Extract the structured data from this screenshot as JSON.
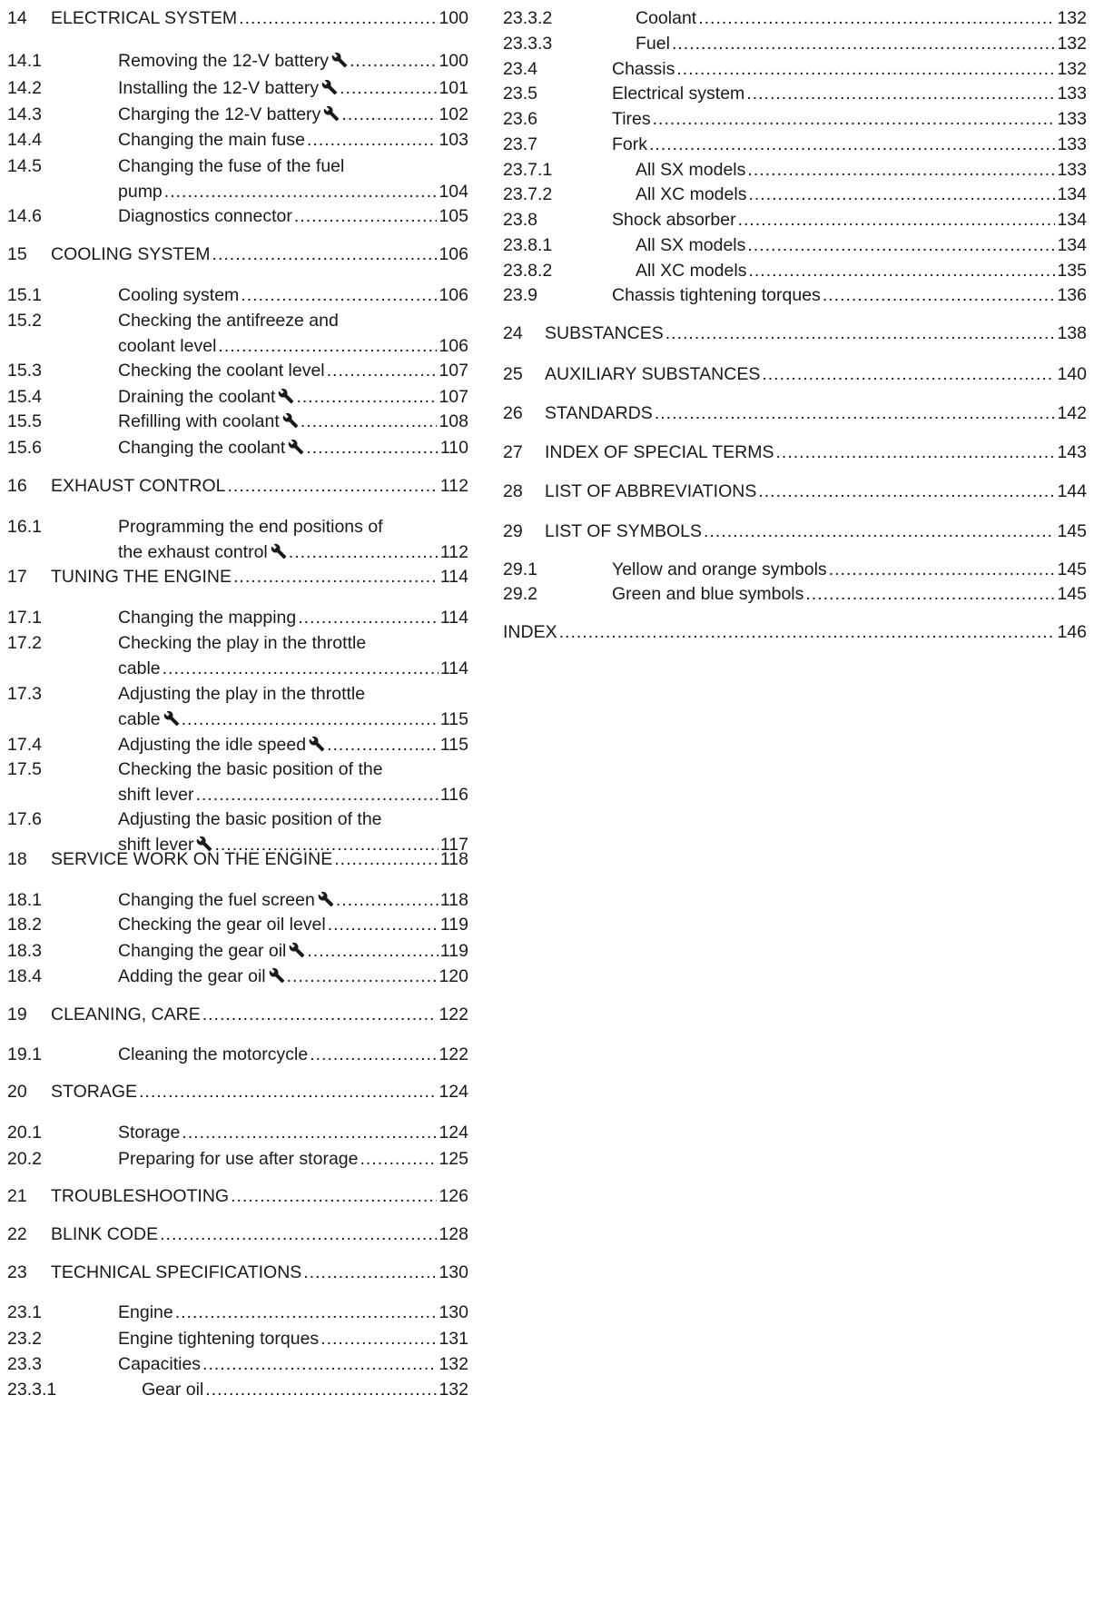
{
  "left_column": [
    {
      "num": "14",
      "title_lines": [
        "ELECTRICAL SYSTEM"
      ],
      "page": "100",
      "level": 1,
      "wrench": false
    },
    {
      "num": "14.1",
      "title_lines": [
        "Removing the 12-V battery"
      ],
      "page": "100",
      "level": 2,
      "wrench": true
    },
    {
      "num": "14.2",
      "title_lines": [
        "Installing the 12-V battery"
      ],
      "page": "101",
      "level": 2,
      "wrench": true
    },
    {
      "num": "14.3",
      "title_lines": [
        "Charging the 12-V battery"
      ],
      "page": "102",
      "level": 2,
      "wrench": true
    },
    {
      "num": "14.4",
      "title_lines": [
        "Changing the main fuse"
      ],
      "page": "103",
      "level": 2,
      "wrench": false
    },
    {
      "num": "14.5",
      "title_lines": [
        "Changing the fuse of the fuel",
        "pump"
      ],
      "page": "104",
      "level": 2,
      "wrench": false
    },
    {
      "num": "14.6",
      "title_lines": [
        "Diagnostics connector"
      ],
      "page": "105",
      "level": 2,
      "wrench": false
    },
    {
      "num": "15",
      "title_lines": [
        "COOLING SYSTEM"
      ],
      "page": "106",
      "level": 1,
      "wrench": false
    },
    {
      "num": "15.1",
      "title_lines": [
        "Cooling system"
      ],
      "page": "106",
      "level": 2,
      "wrench": false
    },
    {
      "num": "15.2",
      "title_lines": [
        "Checking the antifreeze and",
        "coolant level"
      ],
      "page": "106",
      "level": 2,
      "wrench": false
    },
    {
      "num": "15.3",
      "title_lines": [
        "Checking the coolant level"
      ],
      "page": "107",
      "level": 2,
      "wrench": false
    },
    {
      "num": "15.4",
      "title_lines": [
        "Draining the coolant"
      ],
      "page": "107",
      "level": 2,
      "wrench": true
    },
    {
      "num": "15.5",
      "title_lines": [
        "Refilling with coolant"
      ],
      "page": "108",
      "level": 2,
      "wrench": true
    },
    {
      "num": "15.6",
      "title_lines": [
        "Changing the coolant"
      ],
      "page": "110",
      "level": 2,
      "wrench": true
    },
    {
      "num": "16",
      "title_lines": [
        "EXHAUST CONTROL"
      ],
      "page": "112",
      "level": 1,
      "wrench": false
    },
    {
      "num": "16.1",
      "title_lines": [
        "Programming the end positions of",
        "the exhaust control"
      ],
      "page": "112",
      "level": 2,
      "wrench": true
    },
    {
      "num": "17",
      "title_lines": [
        "TUNING THE ENGINE"
      ],
      "page": "114",
      "level": 1,
      "wrench": false
    },
    {
      "num": "17.1",
      "title_lines": [
        "Changing the mapping"
      ],
      "page": "114",
      "level": 2,
      "wrench": false
    },
    {
      "num": "17.2",
      "title_lines": [
        "Checking the play in the throttle",
        "cable"
      ],
      "page": "114",
      "level": 2,
      "wrench": false
    },
    {
      "num": "17.3",
      "title_lines": [
        "Adjusting the play in the throttle",
        "cable"
      ],
      "page": "115",
      "level": 2,
      "wrench": true
    },
    {
      "num": "17.4",
      "title_lines": [
        "Adjusting the idle speed"
      ],
      "page": "115",
      "level": 2,
      "wrench": true
    },
    {
      "num": "17.5",
      "title_lines": [
        "Checking the basic position of the",
        "shift lever"
      ],
      "page": "116",
      "level": 2,
      "wrench": false
    },
    {
      "num": "17.6",
      "title_lines": [
        "Adjusting the basic position of the",
        "shift lever"
      ],
      "page": "117",
      "level": 2,
      "wrench": true
    },
    {
      "num": "18",
      "title_lines": [
        "SERVICE WORK ON THE ENGINE"
      ],
      "page": "118",
      "level": 1,
      "wrench": false
    },
    {
      "num": "18.1",
      "title_lines": [
        "Changing the fuel screen"
      ],
      "page": "118",
      "level": 2,
      "wrench": true
    },
    {
      "num": "18.2",
      "title_lines": [
        "Checking the gear oil level"
      ],
      "page": "119",
      "level": 2,
      "wrench": false
    },
    {
      "num": "18.3",
      "title_lines": [
        "Changing the gear oil"
      ],
      "page": "119",
      "level": 2,
      "wrench": true
    },
    {
      "num": "18.4",
      "title_lines": [
        "Adding the gear oil"
      ],
      "page": "120",
      "level": 2,
      "wrench": true
    },
    {
      "num": "19",
      "title_lines": [
        "CLEANING, CARE"
      ],
      "page": "122",
      "level": 1,
      "wrench": false
    },
    {
      "num": "19.1",
      "title_lines": [
        "Cleaning the motorcycle"
      ],
      "page": "122",
      "level": 2,
      "wrench": false
    },
    {
      "num": "20",
      "title_lines": [
        "STORAGE"
      ],
      "page": "124",
      "level": 1,
      "wrench": false
    },
    {
      "num": "20.1",
      "title_lines": [
        "Storage"
      ],
      "page": "124",
      "level": 2,
      "wrench": false
    },
    {
      "num": "20.2",
      "title_lines": [
        "Preparing for use after storage"
      ],
      "page": "125",
      "level": 2,
      "wrench": false
    },
    {
      "num": "21",
      "title_lines": [
        "TROUBLESHOOTING"
      ],
      "page": "126",
      "level": 1,
      "wrench": false
    },
    {
      "num": "22",
      "title_lines": [
        "BLINK CODE"
      ],
      "page": "128",
      "level": 1,
      "wrench": false
    },
    {
      "num": "23",
      "title_lines": [
        "TECHNICAL SPECIFICATIONS"
      ],
      "page": "130",
      "level": 1,
      "wrench": false
    },
    {
      "num": "23.1",
      "title_lines": [
        "Engine"
      ],
      "page": "130",
      "level": 2,
      "wrench": false
    },
    {
      "num": "23.2",
      "title_lines": [
        "Engine tightening torques"
      ],
      "page": "131",
      "level": 2,
      "wrench": false
    },
    {
      "num": "23.3",
      "title_lines": [
        "Capacities"
      ],
      "page": "132",
      "level": 2,
      "wrench": false
    },
    {
      "num": "23.3.1",
      "title_lines": [
        "Gear oil"
      ],
      "page": "132",
      "level": 3,
      "wrench": false
    }
  ],
  "right_column": [
    {
      "num": "23.3.2",
      "title_lines": [
        "Coolant"
      ],
      "page": "132",
      "level": 3,
      "wrench": false
    },
    {
      "num": "23.3.3",
      "title_lines": [
        "Fuel"
      ],
      "page": "132",
      "level": 3,
      "wrench": false
    },
    {
      "num": "23.4",
      "title_lines": [
        "Chassis"
      ],
      "page": "132",
      "level": 2,
      "wrench": false
    },
    {
      "num": "23.5",
      "title_lines": [
        "Electrical system"
      ],
      "page": "133",
      "level": 2,
      "wrench": false
    },
    {
      "num": "23.6",
      "title_lines": [
        "Tires"
      ],
      "page": "133",
      "level": 2,
      "wrench": false
    },
    {
      "num": "23.7",
      "title_lines": [
        "Fork"
      ],
      "page": "133",
      "level": 2,
      "wrench": false
    },
    {
      "num": "23.7.1",
      "title_lines": [
        "All SX models"
      ],
      "page": "133",
      "level": 3,
      "wrench": false
    },
    {
      "num": "23.7.2",
      "title_lines": [
        "All XC models"
      ],
      "page": "134",
      "level": 3,
      "wrench": false
    },
    {
      "num": "23.8",
      "title_lines": [
        "Shock absorber"
      ],
      "page": "134",
      "level": 2,
      "wrench": false
    },
    {
      "num": "23.8.1",
      "title_lines": [
        "All SX models"
      ],
      "page": "134",
      "level": 3,
      "wrench": false
    },
    {
      "num": "23.8.2",
      "title_lines": [
        "All XC models"
      ],
      "page": "135",
      "level": 3,
      "wrench": false
    },
    {
      "num": "23.9",
      "title_lines": [
        "Chassis tightening torques"
      ],
      "page": "136",
      "level": 2,
      "wrench": false
    },
    {
      "num": "24",
      "title_lines": [
        "SUBSTANCES"
      ],
      "page": "138",
      "level": 1,
      "wrench": false
    },
    {
      "num": "25",
      "title_lines": [
        "AUXILIARY SUBSTANCES"
      ],
      "page": "140",
      "level": 1,
      "wrench": false
    },
    {
      "num": "26",
      "title_lines": [
        "STANDARDS"
      ],
      "page": "142",
      "level": 1,
      "wrench": false
    },
    {
      "num": "27",
      "title_lines": [
        "INDEX OF SPECIAL TERMS"
      ],
      "page": "143",
      "level": 1,
      "wrench": false
    },
    {
      "num": "28",
      "title_lines": [
        "LIST OF ABBREVIATIONS"
      ],
      "page": "144",
      "level": 1,
      "wrench": false
    },
    {
      "num": "29",
      "title_lines": [
        "LIST OF SYMBOLS"
      ],
      "page": "145",
      "level": 1,
      "wrench": false
    },
    {
      "num": "29.1",
      "title_lines": [
        "Yellow and orange symbols"
      ],
      "page": "145",
      "level": 2,
      "wrench": false
    },
    {
      "num": "29.2",
      "title_lines": [
        "Green and blue symbols"
      ],
      "page": "145",
      "level": 2,
      "wrench": false
    },
    {
      "num": "",
      "title_lines": [
        "INDEX"
      ],
      "page": "146",
      "level": 0,
      "wrench": false
    }
  ]
}
